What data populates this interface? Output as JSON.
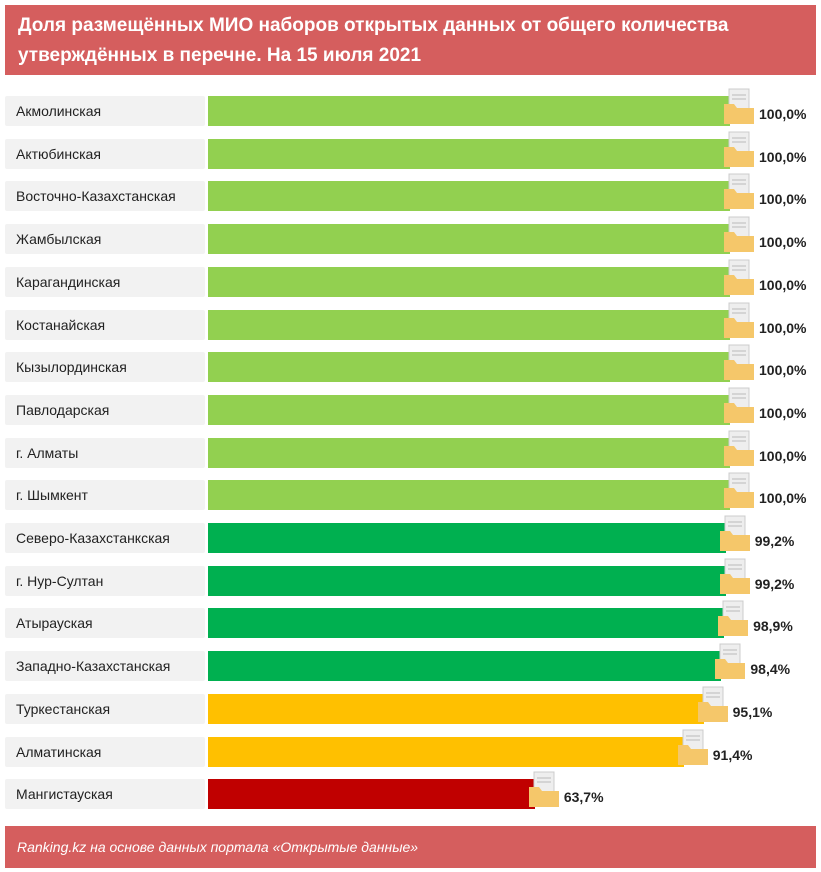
{
  "chart_data": {
    "type": "bar",
    "orientation": "horizontal",
    "title": "Доля размещённых МИО наборов открытых данных от общего количества утверждённых в перечне. На 15 июля 2021",
    "categories": [
      "Акмолинская",
      "Актюбинская",
      "Восточно-Казахстанская",
      "Жамбылская",
      "Карагандинская",
      "Костанайская",
      "Кызылординская",
      "Павлодарская",
      "г. Алматы",
      "г. Шымкент",
      "Северо-Казахстанкская",
      "г. Нур-Султан",
      "Атырауская",
      "Западно-Казахстанская",
      "Туркестанская",
      "Алматинская",
      "Мангистауская"
    ],
    "values": [
      100,
      100,
      100,
      100,
      100,
      100,
      100,
      100,
      100,
      100,
      99.2,
      99.2,
      98.9,
      98.4,
      95.1,
      91.4,
      63.7
    ],
    "labels": [
      "100,0%",
      "100,0%",
      "100,0%",
      "100,0%",
      "100,0%",
      "100,0%",
      "100,0%",
      "100,0%",
      "100,0%",
      "100,0%",
      "99,2%",
      "99,2%",
      "98,9%",
      "98,4%",
      "95,1%",
      "91,4%",
      "63,7%"
    ],
    "colors": [
      "#92D050",
      "#92D050",
      "#92D050",
      "#92D050",
      "#92D050",
      "#92D050",
      "#92D050",
      "#92D050",
      "#92D050",
      "#92D050",
      "#00B050",
      "#00B050",
      "#00B050",
      "#00B050",
      "#FFC000",
      "#FFC000",
      "#C00000"
    ],
    "marker_icon": "folder-icon",
    "xlim": [
      0,
      100
    ]
  },
  "footer": "Ranking.kz на основе данных портала «Открытые данные»",
  "header_color": "#D55E5E"
}
